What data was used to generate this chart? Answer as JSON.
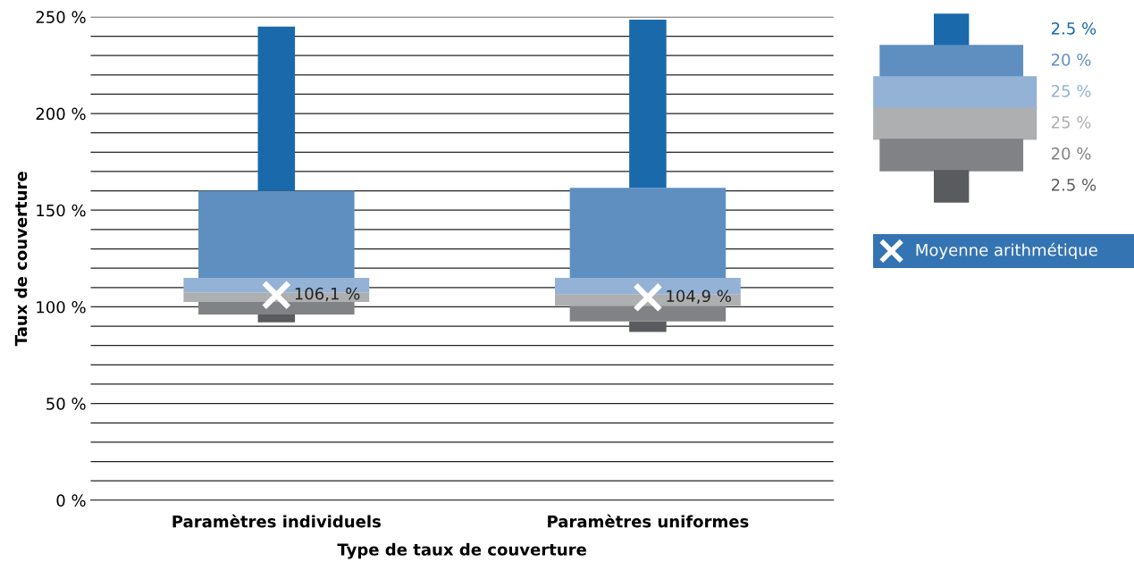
{
  "chart_data": {
    "type": "bar",
    "xlabel": "Type de taux de couverture",
    "ylabel": "Taux de couverture",
    "categories": [
      "Paramètres individuels",
      "Paramètres uniformes"
    ],
    "series": [
      {
        "name": "2.5 %",
        "color": "#5a5b5e",
        "base": [
          92,
          87
        ],
        "values": [
          4,
          5.5
        ]
      },
      {
        "name": "20 %",
        "color": "#818285",
        "base": [
          96,
          92.5
        ],
        "values": [
          6.5,
          8
        ]
      },
      {
        "name": "25 %",
        "color": "#aeafb1",
        "base": [
          102.5,
          100.5
        ],
        "values": [
          5,
          6
        ]
      },
      {
        "name": "25 %",
        "color": "#93b2d6",
        "base": [
          107.5,
          106.5
        ],
        "values": [
          7.5,
          8.5
        ]
      },
      {
        "name": "20 %",
        "color": "#5f8fc1",
        "base": [
          115,
          115
        ],
        "values": [
          45,
          46.5
        ]
      },
      {
        "name": "2.5 %",
        "color": "#1a6aab",
        "base": [
          160,
          161.5
        ],
        "values": [
          85,
          87
        ]
      },
      {
        "name": "Moyenne arithmétique",
        "type": "scatter",
        "marker": "cross",
        "color": "#ffffff",
        "x": [
          "Paramètres individuels",
          "Paramètres uniformes"
        ],
        "values": [
          106.1,
          104.9
        ],
        "value_labels": [
          "106,1 %",
          "104,9 %"
        ]
      }
    ],
    "ylim": [
      0,
      250
    ],
    "yticks": [
      {
        "value": 0,
        "label": "0 %"
      },
      {
        "value": 10,
        "label": null
      },
      {
        "value": 20,
        "label": null
      },
      {
        "value": 30,
        "label": null
      },
      {
        "value": 40,
        "label": null
      },
      {
        "value": 50,
        "label": "50 %"
      },
      {
        "value": 60,
        "label": null
      },
      {
        "value": 70,
        "label": null
      },
      {
        "value": 80,
        "label": null
      },
      {
        "value": 90,
        "label": null
      },
      {
        "value": 100,
        "label": "100 %"
      },
      {
        "value": 110,
        "label": null
      },
      {
        "value": 120,
        "label": null
      },
      {
        "value": 130,
        "label": null
      },
      {
        "value": 140,
        "label": null
      },
      {
        "value": 150,
        "label": "150 %"
      },
      {
        "value": 160,
        "label": null
      },
      {
        "value": 170,
        "label": null
      },
      {
        "value": 180,
        "label": null
      },
      {
        "value": 190,
        "label": null
      },
      {
        "value": 200,
        "label": "200 %"
      },
      {
        "value": 210,
        "label": null
      },
      {
        "value": 220,
        "label": null
      },
      {
        "value": 230,
        "label": null
      },
      {
        "value": 240,
        "label": null
      },
      {
        "value": 250,
        "label": "250 %"
      }
    ],
    "grid": "y",
    "legend": "right"
  }
}
